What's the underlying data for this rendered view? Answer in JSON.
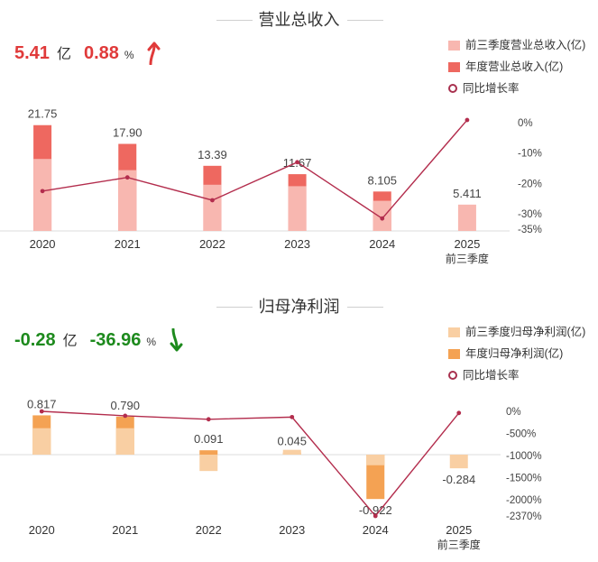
{
  "revenue": {
    "title": "营业总收入",
    "kpi": {
      "value": "5.41",
      "unit": "亿",
      "pct": "0.88",
      "pct_unit": "%",
      "direction": "up"
    },
    "legend": [
      "前三季度营业总收入(亿)",
      "年度营业总收入(亿)",
      "同比增长率"
    ],
    "colors": {
      "annual": "#ee6860",
      "partial": "#f8b7b0",
      "line": "#b32d4d",
      "kpi": "#e03a3a"
    }
  },
  "net_profit": {
    "title": "归母净利润",
    "kpi": {
      "value": "-0.28",
      "unit": "亿",
      "pct": "-36.96",
      "pct_unit": "%",
      "direction": "down"
    },
    "legend": [
      "前三季度归母净利润(亿)",
      "年度归母净利润(亿)",
      "同比增长率"
    ],
    "colors": {
      "annual": "#f4a253",
      "partial": "#f9cfa3",
      "line": "#b32d4d",
      "kpi": "#1d8a1d"
    }
  },
  "chart_data": [
    {
      "type": "bar",
      "title": "营业总收入",
      "categories": [
        "2020",
        "2021",
        "2022",
        "2023",
        "2024",
        "2025"
      ],
      "category_sublabels": [
        "",
        "",
        "",
        "",
        "",
        "前三季度"
      ],
      "series": [
        {
          "name": "前三季度营业总收入(亿)",
          "values": [
            14.8,
            12.5,
            9.5,
            9.2,
            6.2,
            5.411
          ]
        },
        {
          "name": "年度营业总收入(亿)",
          "values": [
            21.75,
            17.9,
            13.39,
            11.67,
            8.105,
            null
          ]
        },
        {
          "name": "同比增长率",
          "kind": "line",
          "axis": "right",
          "values": [
            -22.5,
            -18.0,
            -25.5,
            -13.0,
            -31.5,
            0.88
          ]
        }
      ],
      "data_labels": [
        "21.75",
        "17.90",
        "13.39",
        "11.67",
        "8.105",
        "5.411"
      ],
      "ylim": [
        0,
        23
      ],
      "y2_ticks": [
        "0%",
        "-10%",
        "-20%",
        "-30%",
        "-35%"
      ],
      "y2_values": [
        0,
        -10,
        -20,
        -30,
        -35
      ],
      "y2lim": [
        -35,
        0
      ]
    },
    {
      "type": "bar",
      "title": "归母净利润",
      "categories": [
        "2020",
        "2021",
        "2022",
        "2023",
        "2024",
        "2025"
      ],
      "category_sublabels": [
        "",
        "",
        "",
        "",
        "",
        "前三季度"
      ],
      "series": [
        {
          "name": "前三季度归母净利润(亿)",
          "values": [
            0.55,
            0.55,
            -0.34,
            0.1,
            -0.22,
            -0.284
          ]
        },
        {
          "name": "年度归母净利润(亿)",
          "values": [
            0.817,
            0.79,
            0.091,
            0.045,
            -0.922,
            null
          ]
        },
        {
          "name": "同比增长率",
          "kind": "line",
          "axis": "right",
          "values": [
            0,
            -100,
            -180,
            -130,
            -2370,
            -36.96
          ]
        }
      ],
      "data_labels": [
        "0.817",
        "0.790",
        "0.091",
        "0.045",
        "-0.922",
        "-0.284"
      ],
      "ylim": [
        -1.2,
        1.05
      ],
      "y2_ticks": [
        "0%",
        "-500%",
        "-1000%",
        "-1500%",
        "-2000%",
        "-2370%"
      ],
      "y2_values": [
        0,
        -500,
        -1000,
        -1500,
        -2000,
        -2370
      ],
      "y2lim": [
        -2370,
        0
      ]
    }
  ]
}
